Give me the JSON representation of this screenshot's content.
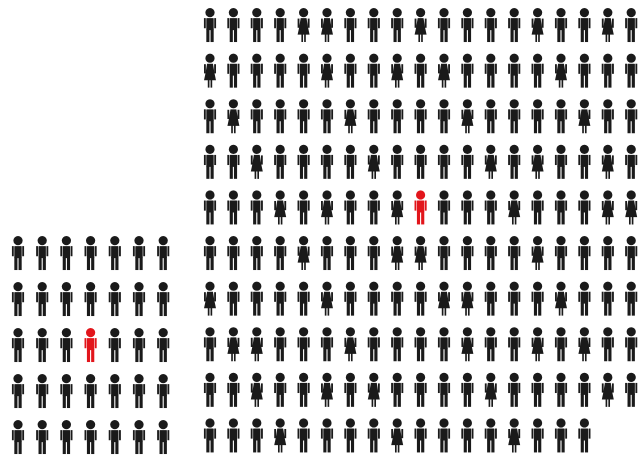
{
  "figures": {
    "small_group": {
      "rows": [
        7,
        7,
        7,
        7,
        7
      ],
      "highlight": {
        "row": 2,
        "col": 3
      },
      "pattern": "all-male"
    },
    "large_group": {
      "rows": [
        19,
        19,
        19,
        19,
        19,
        19,
        19,
        19,
        19,
        17
      ],
      "highlight": {
        "row": 4,
        "col": 9
      },
      "pattern": "mixed-male-female"
    }
  },
  "colors": {
    "figure": "#1a1a1a",
    "highlight": "#e2151b",
    "background": "#ffffff"
  },
  "icons": {
    "male": "male-person-icon",
    "female": "female-person-icon"
  }
}
